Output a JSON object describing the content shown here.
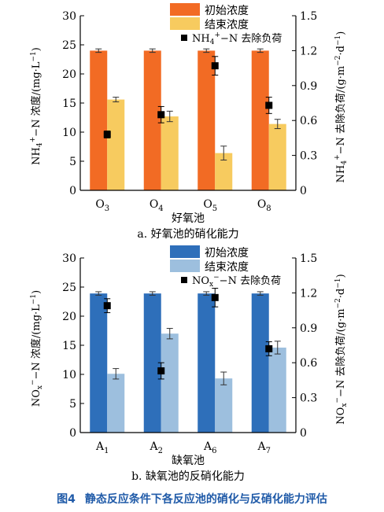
{
  "chart_data": [
    {
      "type": "bar",
      "subtitle": "a. 好氧池的硝化能力",
      "xlabel": "好氧池",
      "ylabel_left": {
        "main": "NH",
        "sub": "4",
        "sup": "+",
        "rest": "−N 浓度/(mg·L",
        "unit_sup": "−1",
        "end": ")"
      },
      "ylabel_right": {
        "main": "NH",
        "sub": "4",
        "sup": "+",
        "rest": "−N 去除负荷/(g·m",
        "sup2": "−2",
        "mid": "·d",
        "sup3": "−1",
        "end": ")"
      },
      "categories": [
        {
          "main": "O",
          "sub": "3"
        },
        {
          "main": "O",
          "sub": "4"
        },
        {
          "main": "O",
          "sub": "5"
        },
        {
          "main": "O",
          "sub": "8"
        }
      ],
      "ylim_left": [
        0,
        30
      ],
      "yticks_left": [
        "0",
        "5",
        "10",
        "15",
        "20",
        "25",
        "30"
      ],
      "ylim_right": [
        0,
        1.5
      ],
      "yticks_right": [
        "0",
        "0.3",
        "0.6",
        "0.9",
        "1.2",
        "1.5"
      ],
      "colors": {
        "initial": "#f26b24",
        "final": "#f7cb5f"
      },
      "series": [
        {
          "name": "初始浓度",
          "values": [
            24.0,
            24.0,
            24.0,
            24.0
          ],
          "errors": [
            0.3,
            0.3,
            0.3,
            0.3
          ]
        },
        {
          "name": "结束浓度",
          "values": [
            15.6,
            12.7,
            6.4,
            11.4
          ],
          "errors": [
            0.4,
            0.9,
            1.2,
            0.8
          ]
        }
      ],
      "load": {
        "name_parts": {
          "main": "NH",
          "sub": "4",
          "sup": "+",
          "rest": "−N 去除负荷"
        },
        "axis": "right",
        "values": [
          0.48,
          0.65,
          1.07,
          0.73
        ],
        "errors": [
          0.03,
          0.07,
          0.08,
          0.07
        ]
      },
      "legend_position": "top-right"
    },
    {
      "type": "bar",
      "subtitle": "b. 缺氧池的反硝化能力",
      "xlabel": "缺氧池",
      "ylabel_left": {
        "main": "NO",
        "sub": "x",
        "sup": "−",
        "rest": "−N 浓度/(mg·L",
        "unit_sup": "−1",
        "end": ")"
      },
      "ylabel_right": {
        "main": "NO",
        "sub": "x",
        "sup": "−",
        "rest": "−N 去除负荷/(g·m",
        "sup2": "−2",
        "mid": "·d",
        "sup3": "−1",
        "end": ")"
      },
      "categories": [
        {
          "main": "A",
          "sub": "1"
        },
        {
          "main": "A",
          "sub": "2"
        },
        {
          "main": "A",
          "sub": "6"
        },
        {
          "main": "A",
          "sub": "7"
        }
      ],
      "ylim_left": [
        0,
        30
      ],
      "yticks_left": [
        "0",
        "5",
        "10",
        "15",
        "20",
        "25",
        "30"
      ],
      "ylim_right": [
        0,
        1.5
      ],
      "yticks_right": [
        "0",
        "0.3",
        "0.6",
        "0.9",
        "1.2",
        "1.5"
      ],
      "colors": {
        "initial": "#2e6fba",
        "final": "#9dbfde"
      },
      "series": [
        {
          "name": "初始浓度",
          "values": [
            23.9,
            23.9,
            23.9,
            23.9
          ],
          "errors": [
            0.3,
            0.3,
            0.3,
            0.3
          ]
        },
        {
          "name": "结束浓度",
          "values": [
            10.1,
            17.0,
            9.3,
            14.6
          ],
          "errors": [
            0.9,
            0.9,
            1.1,
            1.1
          ]
        }
      ],
      "load": {
        "name_parts": {
          "main": "NO",
          "sub": "x",
          "sup": "−",
          "rest": "−N 去除负荷"
        },
        "axis": "right",
        "values": [
          1.09,
          0.53,
          1.16,
          0.72
        ],
        "errors": [
          0.06,
          0.07,
          0.08,
          0.06
        ]
      },
      "legend_position": "top-right"
    }
  ],
  "figure_caption": {
    "number": "图4",
    "text": "静态反应条件下各反应池的硝化与反硝化能力评估"
  }
}
